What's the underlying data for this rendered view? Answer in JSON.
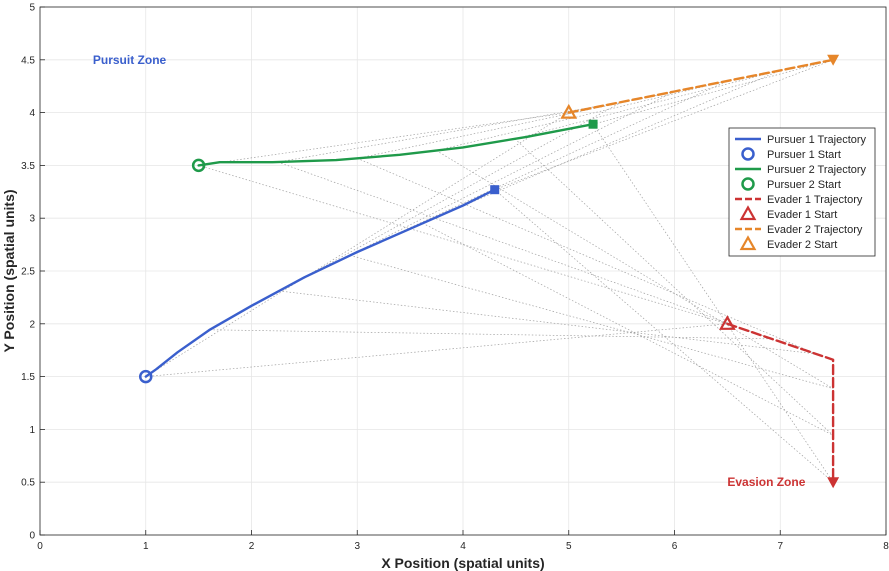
{
  "chart_data": {
    "type": "line",
    "xlabel": "X Position (spatial units)",
    "ylabel": "Y Position (spatial units)",
    "xlim": [
      0,
      8
    ],
    "ylim": [
      0,
      5
    ],
    "xticks": [
      0,
      1,
      2,
      3,
      4,
      5,
      6,
      7,
      8
    ],
    "xtick_labels": [
      "0",
      "1",
      "2",
      "3",
      "4",
      "5",
      "6",
      "7",
      "8"
    ],
    "yticks": [
      0,
      0.5,
      1,
      1.5,
      2,
      2.5,
      3,
      3.5,
      4,
      4.5,
      5
    ],
    "ytick_labels": [
      "0",
      "0.5",
      "1",
      "1.5",
      "2",
      "2.5",
      "3",
      "3.5",
      "4",
      "4.5",
      "5"
    ],
    "grid": true,
    "legend_position": "right",
    "series": [
      {
        "name": "Pursuer 1 Trajectory",
        "start_label": "Pursuer 1 Start",
        "color": "#3a5fcd",
        "style": "solid",
        "start_marker": "circle",
        "end_marker": "square",
        "x": [
          1.0,
          1.1,
          1.3,
          1.6,
          2.0,
          2.5,
          3.0,
          3.5,
          4.0,
          4.3
        ],
        "y": [
          1.5,
          1.57,
          1.73,
          1.94,
          2.17,
          2.44,
          2.68,
          2.9,
          3.12,
          3.27
        ]
      },
      {
        "name": "Pursuer 2 Trajectory",
        "start_label": "Pursuer 2 Start",
        "color": "#1f9a4a",
        "style": "solid",
        "start_marker": "circle",
        "end_marker": "square",
        "x": [
          1.5,
          1.7,
          2.2,
          2.8,
          3.4,
          4.0,
          4.6,
          5.23
        ],
        "y": [
          3.5,
          3.53,
          3.53,
          3.55,
          3.6,
          3.67,
          3.77,
          3.89
        ]
      },
      {
        "name": "Evader 1 Trajectory",
        "start_label": "Evader 1 Start",
        "color": "#cc3333",
        "style": "dashed",
        "start_marker": "triangle-up",
        "end_marker": "triangle-down",
        "x": [
          6.5,
          7.0,
          7.5,
          7.5,
          7.5
        ],
        "y": [
          2.0,
          1.83,
          1.66,
          1.1,
          0.5
        ]
      },
      {
        "name": "Evader 2 Trajectory",
        "start_label": "Evader 2 Start",
        "color": "#e6862a",
        "style": "dashed",
        "start_marker": "triangle-up",
        "end_marker": "triangle-down",
        "x": [
          5.0,
          5.5,
          6.0,
          6.5,
          7.0,
          7.5
        ],
        "y": [
          4.0,
          4.1,
          4.2,
          4.3,
          4.4,
          4.5
        ]
      }
    ],
    "connections": [
      {
        "from_series": 0,
        "to_series": 2
      },
      {
        "from_series": 0,
        "to_series": 3
      },
      {
        "from_series": 1,
        "to_series": 2
      },
      {
        "from_series": 1,
        "to_series": 3
      }
    ],
    "annotations": [
      {
        "text": "Pursuit Zone",
        "x": 0.5,
        "y": 4.5,
        "color": "#3a5fcd"
      },
      {
        "text": "Evasion Zone",
        "x": 6.5,
        "y": 0.5,
        "color": "#cc3333"
      }
    ]
  }
}
